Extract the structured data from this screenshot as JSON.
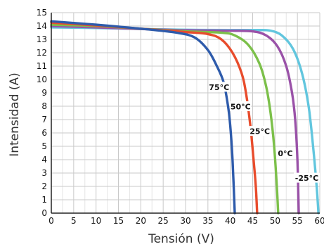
{
  "chart_data": {
    "type": "line",
    "title": "",
    "xlabel": "Tensión (V)",
    "ylabel": "Intensidad (A)",
    "xlim": [
      0,
      60
    ],
    "ylim": [
      0,
      15
    ],
    "x_ticks": [
      "0",
      "5",
      "10",
      "15",
      "20",
      "25",
      "30",
      "35",
      "40",
      "45",
      "50",
      "55",
      "60"
    ],
    "y_ticks": [
      "0",
      "1",
      "2",
      "3",
      "4",
      "5",
      "6",
      "7",
      "8",
      "9",
      "10",
      "11",
      "12",
      "13",
      "14",
      "15"
    ],
    "grid": true,
    "legend": "none",
    "series": [
      {
        "name": "75°C",
        "color": "#2e5bab",
        "points": [
          [
            0,
            14.35
          ],
          [
            10,
            14.1
          ],
          [
            20,
            13.8
          ],
          [
            28,
            13.5
          ],
          [
            32,
            13.15
          ],
          [
            35,
            12.2
          ],
          [
            37,
            11.0
          ],
          [
            38.5,
            9.8
          ],
          [
            39.5,
            8.0
          ],
          [
            40,
            6.5
          ],
          [
            40.5,
            4.0
          ],
          [
            41,
            0
          ]
        ]
      },
      {
        "name": "50°C",
        "color": "#e84c2c",
        "points": [
          [
            0,
            14.25
          ],
          [
            10,
            14.05
          ],
          [
            20,
            13.8
          ],
          [
            30,
            13.55
          ],
          [
            35,
            13.4
          ],
          [
            38,
            13.0
          ],
          [
            40.5,
            12.0
          ],
          [
            42.5,
            10.5
          ],
          [
            43.5,
            9.0
          ],
          [
            44.5,
            6.5
          ],
          [
            45.2,
            4.0
          ],
          [
            45.7,
            2.0
          ],
          [
            46,
            0
          ]
        ]
      },
      {
        "name": "25°C",
        "color": "#7cc04a",
        "points": [
          [
            0,
            14.1
          ],
          [
            10,
            14.0
          ],
          [
            20,
            13.8
          ],
          [
            30,
            13.6
          ],
          [
            38,
            13.5
          ],
          [
            41,
            13.3
          ],
          [
            44,
            12.6
          ],
          [
            46.5,
            11.2
          ],
          [
            48,
            9.5
          ],
          [
            49,
            7.5
          ],
          [
            49.8,
            5.0
          ],
          [
            50.4,
            2.0
          ],
          [
            50.7,
            0
          ]
        ]
      },
      {
        "name": "0°C",
        "color": "#9a52a8",
        "points": [
          [
            0,
            14.0
          ],
          [
            10,
            13.9
          ],
          [
            20,
            13.78
          ],
          [
            30,
            13.68
          ],
          [
            40,
            13.65
          ],
          [
            45,
            13.6
          ],
          [
            48,
            13.3
          ],
          [
            50.5,
            12.5
          ],
          [
            52.5,
            11.0
          ],
          [
            53.8,
            9.0
          ],
          [
            54.5,
            7.0
          ],
          [
            55,
            4.0
          ],
          [
            55.3,
            0
          ]
        ]
      },
      {
        "name": "-25°C",
        "color": "#62c6de",
        "points": [
          [
            0,
            13.9
          ],
          [
            10,
            13.85
          ],
          [
            20,
            13.78
          ],
          [
            30,
            13.72
          ],
          [
            40,
            13.7
          ],
          [
            46,
            13.7
          ],
          [
            49,
            13.65
          ],
          [
            51.5,
            13.3
          ],
          [
            54,
            12.3
          ],
          [
            56,
            10.5
          ],
          [
            57.5,
            8.0
          ],
          [
            58.5,
            5.0
          ],
          [
            59.3,
            2.0
          ],
          [
            59.7,
            0
          ]
        ]
      }
    ],
    "annotations": [
      {
        "text": "75°C",
        "x": 37.5,
        "y": 9.4
      },
      {
        "text": "50°C",
        "x": 42.3,
        "y": 7.95
      },
      {
        "text": "25°C",
        "x": 46.6,
        "y": 6.1
      },
      {
        "text": "0°C",
        "x": 52.3,
        "y": 4.45
      },
      {
        "text": "-25°C",
        "x": 57.1,
        "y": 2.6
      }
    ]
  }
}
